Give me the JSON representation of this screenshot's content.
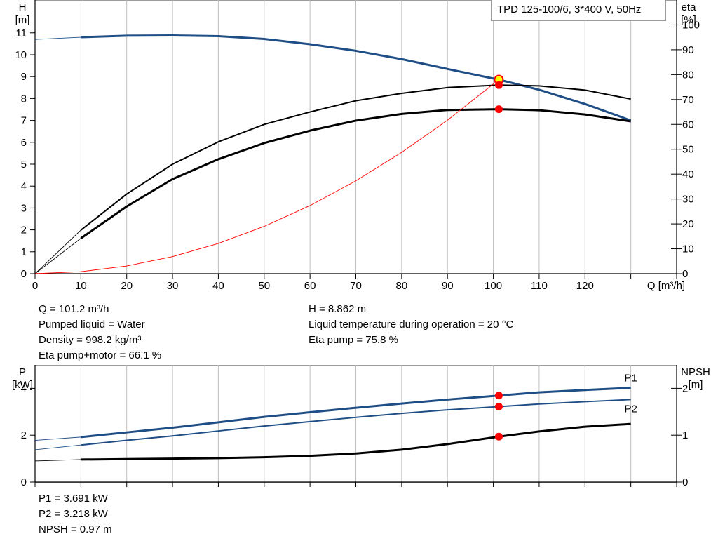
{
  "title": "TPD 125-100/6, 3*400 V, 50Hz",
  "top_info_left": [
    "Q = 101.2 m³/h",
    "Pumped liquid = Water",
    "Density = 998.2 kg/m³",
    "Eta pump+motor = 66.1 %"
  ],
  "top_info_right": [
    "H = 8.862 m",
    "Liquid temperature during operation = 20 °C",
    "Eta pump = 75.8 %"
  ],
  "bottom_info": [
    "P1 = 3.691 kW",
    "P2 = 3.218 kW",
    "NPSH = 0.97 m"
  ],
  "colors": {
    "blue": "#1f4e86",
    "black": "#000000",
    "red": "#ff0000",
    "yellow": "#ffff00",
    "grid": "#bfbfbf"
  },
  "chart_data": [
    {
      "type": "line",
      "xlabel": "Q [m³/h]",
      "ylabel_left": [
        "H",
        "[m]"
      ],
      "ylabel_right": [
        "eta",
        "[%]"
      ],
      "x_ticks": [
        0,
        10,
        20,
        30,
        40,
        50,
        60,
        70,
        80,
        90,
        100,
        110,
        120
      ],
      "xlim": [
        0,
        140
      ],
      "y_left_ticks": [
        0,
        1,
        2,
        3,
        4,
        5,
        6,
        7,
        8,
        9,
        10,
        11
      ],
      "ylim_left": [
        0,
        12.5
      ],
      "y_right_ticks": [
        0,
        10,
        20,
        30,
        40,
        50,
        60,
        70,
        80,
        90,
        100
      ],
      "ylim_right": [
        0,
        110
      ],
      "grid": true,
      "series": [
        {
          "role": "H",
          "axis": "left",
          "color": "blue",
          "x": [
            0,
            10,
            20,
            30,
            40,
            50,
            60,
            70,
            80,
            90,
            101.2,
            110,
            120,
            130
          ],
          "y": [
            10.7,
            10.8,
            10.87,
            10.88,
            10.85,
            10.72,
            10.48,
            10.18,
            9.8,
            9.35,
            8.862,
            8.4,
            7.75,
            7.0
          ]
        },
        {
          "role": "eta-pump",
          "axis": "right",
          "color": "black",
          "x": [
            0,
            10,
            20,
            30,
            40,
            50,
            60,
            70,
            80,
            90,
            101.2,
            110,
            120,
            130
          ],
          "y": [
            0,
            17.5,
            32,
            44,
            53,
            60,
            65,
            69.5,
            72.5,
            74.8,
            75.8,
            75.5,
            73.8,
            70.2
          ]
        },
        {
          "role": "eta-pump-motor",
          "axis": "right",
          "color": "black",
          "x": [
            0,
            10,
            20,
            30,
            40,
            50,
            60,
            70,
            80,
            90,
            101.2,
            110,
            120,
            130
          ],
          "y": [
            0,
            14.2,
            27,
            38,
            46,
            52.5,
            57.5,
            61.5,
            64.2,
            65.8,
            66.1,
            65.7,
            64,
            61.2
          ]
        },
        {
          "role": "system-curve",
          "axis": "left",
          "color": "red",
          "x": [
            0,
            10,
            20,
            30,
            40,
            50,
            60,
            70,
            80,
            90,
            101.2
          ],
          "y": [
            0,
            0.09,
            0.35,
            0.78,
            1.38,
            2.16,
            3.11,
            4.24,
            5.54,
            7.01,
            8.862
          ]
        }
      ],
      "markers": [
        {
          "x": 101.2,
          "y": 8.862,
          "axis": "left",
          "style": "yellow"
        },
        {
          "x": 101.2,
          "y": 75.8,
          "axis": "right",
          "style": "red"
        },
        {
          "x": 101.2,
          "y": 66.1,
          "axis": "right",
          "style": "red"
        }
      ]
    },
    {
      "type": "line",
      "ylabel_left": [
        "P",
        "[kW]"
      ],
      "ylabel_right": [
        "NPSH",
        "[m]"
      ],
      "x_ticks": [
        0,
        10,
        20,
        30,
        40,
        50,
        60,
        70,
        80,
        90,
        100,
        110,
        120
      ],
      "xlim": [
        0,
        140
      ],
      "y_left_ticks": [
        0,
        2,
        4
      ],
      "ylim_left": [
        0,
        5
      ],
      "y_right_ticks": [
        0,
        1,
        2
      ],
      "ylim_right": [
        0,
        2.5
      ],
      "grid": true,
      "series": [
        {
          "name": "P1",
          "axis": "left",
          "color": "blue",
          "x": [
            0,
            10,
            20,
            30,
            40,
            50,
            60,
            70,
            80,
            90,
            101.2,
            110,
            120,
            130
          ],
          "y": [
            1.78,
            1.92,
            2.12,
            2.32,
            2.55,
            2.78,
            2.98,
            3.17,
            3.35,
            3.52,
            3.691,
            3.83,
            3.93,
            4.02
          ]
        },
        {
          "name": "P2",
          "axis": "left",
          "color": "blue",
          "x": [
            0,
            10,
            20,
            30,
            40,
            50,
            60,
            70,
            80,
            90,
            101.2,
            110,
            120,
            130
          ],
          "y": [
            1.38,
            1.58,
            1.78,
            1.97,
            2.18,
            2.39,
            2.58,
            2.76,
            2.93,
            3.08,
            3.218,
            3.33,
            3.43,
            3.52
          ]
        },
        {
          "role": "NPSH",
          "axis": "right",
          "color": "black",
          "x": [
            0,
            10,
            20,
            30,
            40,
            50,
            60,
            70,
            80,
            90,
            101.2,
            110,
            120,
            130
          ],
          "y": [
            0.45,
            0.48,
            0.49,
            0.5,
            0.51,
            0.53,
            0.56,
            0.61,
            0.69,
            0.81,
            0.97,
            1.08,
            1.18,
            1.24
          ]
        }
      ],
      "markers": [
        {
          "x": 101.2,
          "y": 3.691,
          "axis": "left",
          "style": "red"
        },
        {
          "x": 101.2,
          "y": 3.218,
          "axis": "left",
          "style": "red"
        },
        {
          "x": 101.2,
          "y": 0.97,
          "axis": "right",
          "style": "red"
        }
      ]
    }
  ]
}
